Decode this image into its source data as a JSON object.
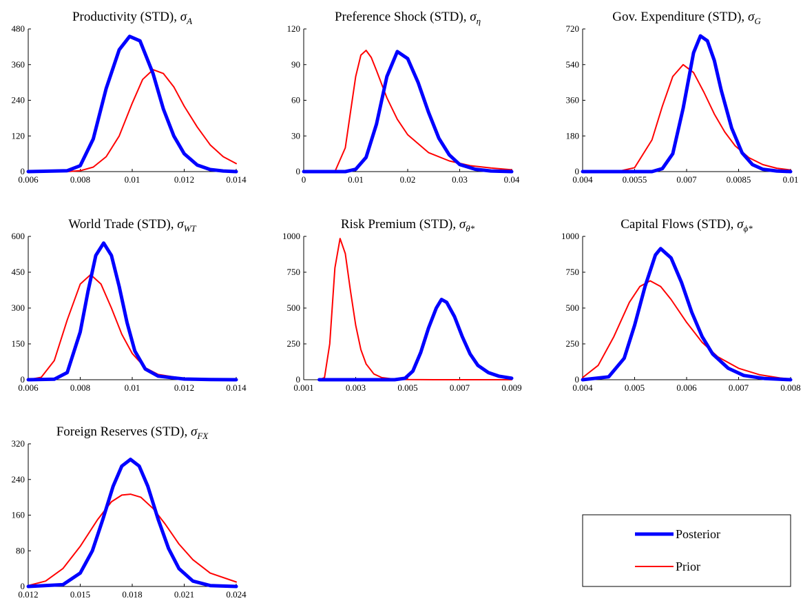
{
  "chart_data": [
    {
      "type": "line",
      "title": "Productivity (STD), ",
      "title_symbol": "σ",
      "title_subscript": "A",
      "xlim": [
        0.006,
        0.014
      ],
      "ylim": [
        0,
        480
      ],
      "x_ticks": [
        "0.006",
        "0.008",
        "0.01",
        "0.012",
        "0.014"
      ],
      "y_ticks": [
        "0",
        "120",
        "240",
        "360",
        "480"
      ],
      "series": [
        {
          "name": "Posterior",
          "color": "#0000ff",
          "x": [
            0.006,
            0.0075,
            0.008,
            0.0085,
            0.009,
            0.0095,
            0.0099,
            0.0103,
            0.0108,
            0.0112,
            0.0116,
            0.012,
            0.0125,
            0.013,
            0.0135,
            0.014
          ],
          "y": [
            0,
            3,
            20,
            110,
            280,
            410,
            455,
            440,
            330,
            210,
            120,
            60,
            22,
            7,
            2,
            0
          ]
        },
        {
          "name": "Prior",
          "color": "#ff0000",
          "x": [
            0.006,
            0.0075,
            0.008,
            0.0085,
            0.009,
            0.0095,
            0.01,
            0.0104,
            0.0108,
            0.0112,
            0.0116,
            0.012,
            0.0125,
            0.013,
            0.0135,
            0.014
          ],
          "y": [
            0,
            0,
            3,
            15,
            50,
            120,
            230,
            310,
            343,
            330,
            285,
            220,
            150,
            90,
            50,
            27
          ]
        }
      ]
    },
    {
      "type": "line",
      "title": "Preference Shock (STD), ",
      "title_symbol": "σ",
      "title_subscript": "η",
      "xlim": [
        0,
        0.04
      ],
      "ylim": [
        0,
        120
      ],
      "x_ticks": [
        "0",
        "0.01",
        "0.02",
        "0.03",
        "0.04"
      ],
      "y_ticks": [
        "0",
        "30",
        "60",
        "90",
        "120"
      ],
      "series": [
        {
          "name": "Posterior",
          "color": "#0000ff",
          "x": [
            0,
            0.008,
            0.01,
            0.012,
            0.014,
            0.016,
            0.018,
            0.02,
            0.022,
            0.024,
            0.026,
            0.028,
            0.03,
            0.033,
            0.036,
            0.04
          ],
          "y": [
            0,
            0,
            2,
            12,
            40,
            80,
            101,
            95,
            75,
            50,
            28,
            14,
            6,
            2,
            0.5,
            0
          ]
        },
        {
          "name": "Prior",
          "color": "#ff0000",
          "x": [
            0,
            0.006,
            0.008,
            0.009,
            0.01,
            0.011,
            0.012,
            0.013,
            0.014,
            0.016,
            0.018,
            0.02,
            0.024,
            0.028,
            0.032,
            0.036,
            0.04
          ],
          "y": [
            0,
            0,
            20,
            50,
            80,
            98,
            102,
            96,
            85,
            62,
            44,
            31,
            16,
            9,
            5,
            3,
            1.5
          ]
        }
      ]
    },
    {
      "type": "line",
      "title": "Gov. Expenditure (STD), ",
      "title_symbol": "σ",
      "title_subscript": "G",
      "xlim": [
        0.004,
        0.01
      ],
      "ylim": [
        0,
        720
      ],
      "x_ticks": [
        "0.004",
        "0.0055",
        "0.007",
        "0.0085",
        "0.01"
      ],
      "y_ticks": [
        "0",
        "180",
        "360",
        "540",
        "720"
      ],
      "series": [
        {
          "name": "Posterior",
          "color": "#0000ff",
          "x": [
            0.004,
            0.006,
            0.0063,
            0.0066,
            0.0069,
            0.0072,
            0.0074,
            0.0076,
            0.0078,
            0.008,
            0.0083,
            0.0086,
            0.0089,
            0.0092,
            0.0096,
            0.01
          ],
          "y": [
            0,
            0,
            15,
            90,
            320,
            600,
            685,
            660,
            560,
            410,
            220,
            95,
            35,
            12,
            3,
            0
          ]
        },
        {
          "name": "Prior",
          "color": "#ff0000",
          "x": [
            0.004,
            0.005,
            0.0055,
            0.006,
            0.0063,
            0.0066,
            0.0069,
            0.0072,
            0.0075,
            0.0078,
            0.0081,
            0.0084,
            0.0088,
            0.0092,
            0.0096,
            0.01
          ],
          "y": [
            0,
            0,
            20,
            160,
            330,
            480,
            540,
            500,
            400,
            290,
            200,
            130,
            70,
            35,
            17,
            8
          ]
        }
      ]
    },
    {
      "type": "line",
      "title": "World Trade (STD), ",
      "title_symbol": "σ",
      "title_subscript": "WT",
      "xlim": [
        0.006,
        0.014
      ],
      "ylim": [
        0,
        600
      ],
      "x_ticks": [
        "0.006",
        "0.008",
        "0.01",
        "0.012",
        "0.014"
      ],
      "y_ticks": [
        "0",
        "150",
        "300",
        "450",
        "600"
      ],
      "series": [
        {
          "name": "Posterior",
          "color": "#0000ff",
          "x": [
            0.006,
            0.007,
            0.0075,
            0.008,
            0.0083,
            0.0086,
            0.0089,
            0.0092,
            0.0095,
            0.0098,
            0.0101,
            0.0105,
            0.011,
            0.012,
            0.013,
            0.014
          ],
          "y": [
            0,
            2,
            30,
            200,
            370,
            520,
            572,
            520,
            390,
            240,
            120,
            45,
            15,
            3,
            1,
            0
          ]
        },
        {
          "name": "Prior",
          "color": "#ff0000",
          "x": [
            0.006,
            0.0065,
            0.007,
            0.0075,
            0.008,
            0.0084,
            0.0088,
            0.0092,
            0.0096,
            0.01,
            0.0105,
            0.011,
            0.012,
            0.013,
            0.014
          ],
          "y": [
            0,
            10,
            80,
            250,
            400,
            440,
            400,
            300,
            190,
            110,
            50,
            22,
            5,
            1,
            0
          ]
        }
      ]
    },
    {
      "type": "line",
      "title": "Risk Premium (STD), ",
      "title_symbol": "σ",
      "title_subscript": "θ*",
      "xlim": [
        0.001,
        0.009
      ],
      "ylim": [
        0,
        1000
      ],
      "x_ticks": [
        "0.001",
        "0.003",
        "0.005",
        "0.007",
        "0.009"
      ],
      "y_ticks": [
        "0",
        "250",
        "500",
        "750",
        "1000"
      ],
      "series": [
        {
          "name": "Posterior",
          "color": "#0000ff",
          "x": [
            0.0016,
            0.0045,
            0.0049,
            0.0052,
            0.0055,
            0.0058,
            0.0061,
            0.0063,
            0.0065,
            0.0068,
            0.0071,
            0.0074,
            0.0077,
            0.0081,
            0.0085,
            0.009
          ],
          "y": [
            0,
            0,
            10,
            60,
            190,
            360,
            500,
            560,
            540,
            440,
            300,
            180,
            100,
            50,
            25,
            10
          ]
        },
        {
          "name": "Prior",
          "color": "#ff0000",
          "x": [
            0.0016,
            0.0018,
            0.002,
            0.0022,
            0.0024,
            0.0026,
            0.0028,
            0.003,
            0.0032,
            0.0034,
            0.0037,
            0.004,
            0.0045,
            0.005,
            0.006,
            0.007,
            0.009
          ],
          "y": [
            0,
            15,
            250,
            780,
            985,
            880,
            620,
            380,
            210,
            110,
            40,
            15,
            4,
            1,
            0,
            0,
            0
          ]
        }
      ]
    },
    {
      "type": "line",
      "title": "Capital Flows (STD), ",
      "title_symbol": "σ",
      "title_subscript": "ϕ*",
      "xlim": [
        0.004,
        0.008
      ],
      "ylim": [
        0,
        1000
      ],
      "x_ticks": [
        "0.004",
        "0.005",
        "0.006",
        "0.007",
        "0.008"
      ],
      "y_ticks": [
        "0",
        "250",
        "500",
        "750",
        "1000"
      ],
      "series": [
        {
          "name": "Posterior",
          "color": "#0000ff",
          "x": [
            0.004,
            0.0045,
            0.0048,
            0.005,
            0.0052,
            0.0054,
            0.0055,
            0.0057,
            0.0059,
            0.0061,
            0.0063,
            0.0065,
            0.0068,
            0.0071,
            0.0075,
            0.008
          ],
          "y": [
            0,
            20,
            150,
            380,
            650,
            870,
            915,
            850,
            680,
            470,
            300,
            180,
            80,
            30,
            8,
            0
          ]
        },
        {
          "name": "Prior",
          "color": "#ff0000",
          "x": [
            0.004,
            0.0043,
            0.0046,
            0.0049,
            0.0051,
            0.0053,
            0.0055,
            0.0057,
            0.006,
            0.0063,
            0.0066,
            0.007,
            0.0074,
            0.0078,
            0.008
          ],
          "y": [
            15,
            100,
            300,
            540,
            650,
            690,
            650,
            560,
            400,
            260,
            160,
            80,
            35,
            12,
            6
          ]
        }
      ]
    },
    {
      "type": "line",
      "title": "Foreign Reserves (STD), ",
      "title_symbol": "σ",
      "title_subscript": "FX",
      "xlim": [
        0.012,
        0.024
      ],
      "ylim": [
        0,
        320
      ],
      "x_ticks": [
        "0.012",
        "0.015",
        "0.018",
        "0.021",
        "0.024"
      ],
      "y_ticks": [
        "0",
        "80",
        "160",
        "240",
        "320"
      ],
      "series": [
        {
          "name": "Posterior",
          "color": "#0000ff",
          "x": [
            0.012,
            0.014,
            0.015,
            0.0157,
            0.0163,
            0.0169,
            0.0174,
            0.0179,
            0.0184,
            0.0189,
            0.0195,
            0.0201,
            0.0207,
            0.0215,
            0.0225,
            0.024
          ],
          "y": [
            0,
            4,
            30,
            80,
            150,
            225,
            270,
            285,
            270,
            225,
            150,
            85,
            40,
            12,
            2,
            0
          ]
        },
        {
          "name": "Prior",
          "color": "#ff0000",
          "x": [
            0.012,
            0.013,
            0.014,
            0.015,
            0.016,
            0.0168,
            0.0174,
            0.0179,
            0.0185,
            0.0192,
            0.0199,
            0.0207,
            0.0215,
            0.0225,
            0.024
          ],
          "y": [
            2,
            12,
            40,
            90,
            150,
            190,
            205,
            207,
            200,
            175,
            140,
            95,
            60,
            30,
            10
          ]
        }
      ]
    }
  ],
  "legend": {
    "entries": [
      {
        "label": "Posterior",
        "color": "#0000ff",
        "width": 5
      },
      {
        "label": "Prior",
        "color": "#ff0000",
        "width": 2
      }
    ]
  }
}
